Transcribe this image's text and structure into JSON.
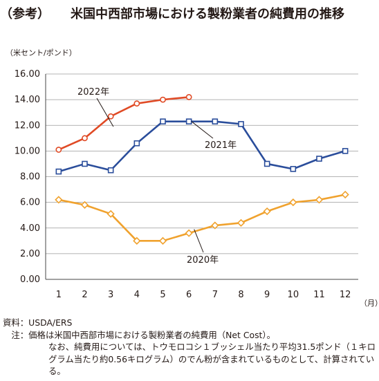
{
  "title": {
    "tag": "（参考）",
    "main": "米国中西部市場における製粉業者の純費用の推移"
  },
  "colors": {
    "y2020": "#f0a22e",
    "y2021": "#2a4d9b",
    "y2022": "#e04a25",
    "grid": "#9a9a9a",
    "text": "#231815"
  },
  "notes": {
    "source_label": "資料：",
    "source": "USDA/ERS",
    "note_label": "　注：",
    "note_line1": "価格は米国中西部市場における製粉業者の純費用（Net Cost）。",
    "note_line2": "なお、純費用については、トウモロコシ１ブッシェル当たり平均31.5ポンド（１キログラム当たり約0.56キログラム）のでん粉が含まれているものとして、計算されている。"
  },
  "chart_data": {
    "type": "line",
    "unit_label": "（米セント/ポンド）",
    "x_unit_label": "（月）",
    "categories": [
      "1",
      "2",
      "3",
      "4",
      "5",
      "6",
      "7",
      "8",
      "9",
      "10",
      "11",
      "12"
    ],
    "ylim": [
      0,
      16
    ],
    "yticks": [
      "0.00",
      "2.00",
      "4.00",
      "6.00",
      "8.00",
      "10.00",
      "12.00",
      "14.00",
      "16.00"
    ],
    "grid": true,
    "series": [
      {
        "name": "2022年",
        "color": "#e04a25",
        "marker": "circle",
        "values": [
          10.1,
          11.0,
          12.7,
          13.7,
          14.0,
          14.2,
          null,
          null,
          null,
          null,
          null,
          null
        ]
      },
      {
        "name": "2021年",
        "color": "#2a4d9b",
        "marker": "square",
        "values": [
          8.4,
          9.0,
          8.5,
          10.6,
          12.3,
          12.3,
          12.3,
          12.1,
          9.0,
          8.6,
          9.4,
          10.0
        ]
      },
      {
        "name": "2020年",
        "color": "#f0a22e",
        "marker": "diamond",
        "values": [
          6.2,
          5.8,
          5.1,
          3.0,
          3.0,
          3.6,
          4.2,
          4.4,
          5.3,
          6.0,
          6.2,
          6.6
        ]
      }
    ]
  }
}
